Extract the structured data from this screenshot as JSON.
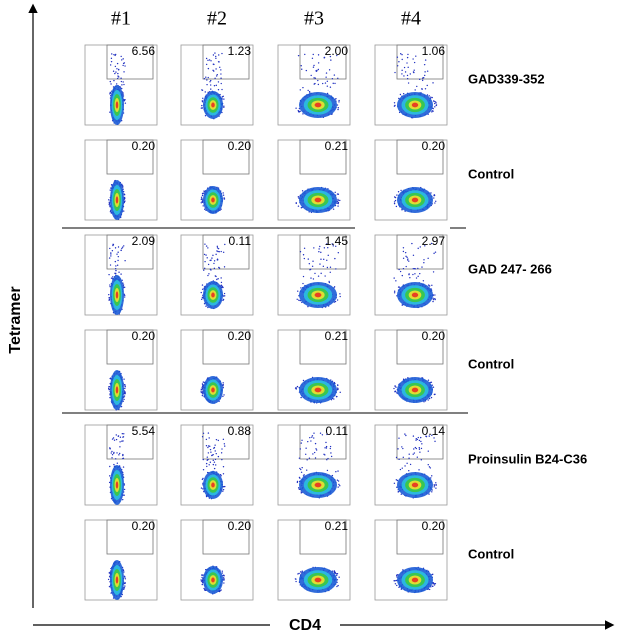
{
  "axes": {
    "y_label": "Tetramer",
    "x_label": "CD4"
  },
  "table": {
    "columns": [
      "#1",
      "#2",
      "#3",
      "#4"
    ],
    "rows": [
      {
        "label": "GAD339-352",
        "values": [
          "6.56",
          "1.23",
          "2.00",
          "1.06"
        ]
      },
      {
        "label": "Control",
        "values": [
          "0.20",
          "0.20",
          "0.21",
          "0.20"
        ]
      },
      {
        "label": "GAD 247- 266",
        "values": [
          "2.09",
          "0.11",
          "1.45",
          "2.97"
        ]
      },
      {
        "label": "Control",
        "values": [
          "0.20",
          "0.20",
          "0.21",
          "0.20"
        ]
      },
      {
        "label": "Proinsulin B24-C36",
        "values": [
          "5.54",
          "0.88",
          "0.11",
          "0.14"
        ]
      },
      {
        "label": "Control",
        "values": [
          "0.20",
          "0.20",
          "0.21",
          "0.20"
        ]
      }
    ]
  }
}
